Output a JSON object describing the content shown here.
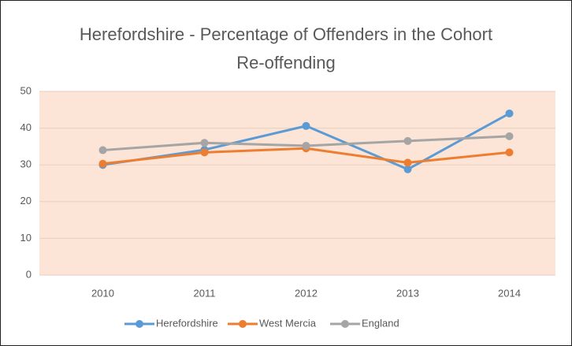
{
  "chart_data": {
    "type": "line",
    "title": "Herefordshire - Percentage of Offenders in the Cohort Re-offending",
    "categories": [
      "2010",
      "2011",
      "2012",
      "2013",
      "2014"
    ],
    "series": [
      {
        "name": "Herefordshire",
        "color": "#5b9bd5",
        "values": [
          30.0,
          34.1,
          40.6,
          28.8,
          44.0
        ]
      },
      {
        "name": "West Mercia",
        "color": "#ed7d31",
        "values": [
          30.3,
          33.4,
          34.5,
          30.6,
          33.4
        ]
      },
      {
        "name": "England",
        "color": "#a5a5a5",
        "values": [
          34.0,
          36.0,
          35.2,
          36.5,
          37.8
        ]
      }
    ],
    "ylim": [
      0,
      50
    ],
    "yticks": [
      0,
      10,
      20,
      30,
      40,
      50
    ],
    "grid": true,
    "legend": "bottom",
    "plot_background": "#fce4d6"
  }
}
